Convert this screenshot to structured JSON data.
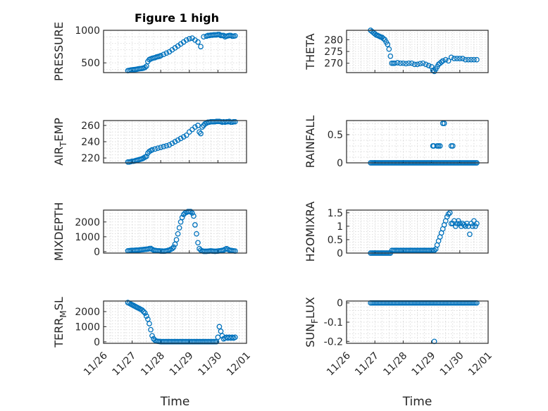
{
  "figure_title": "Figure 1 high",
  "series_color": "#0072BD",
  "chart_data": [
    {
      "type": "scatter",
      "name": "pressure-plot",
      "title": "Figure 1 high",
      "ylabel": "PRESSURE",
      "ylim": [
        350,
        1000
      ],
      "yticks": [
        500,
        1000
      ],
      "ytick_labels": [
        "500",
        "1000"
      ],
      "x": [
        26.85,
        26.9,
        26.95,
        27.0,
        27.05,
        27.1,
        27.15,
        27.2,
        27.25,
        27.3,
        27.35,
        27.4,
        27.45,
        27.5,
        27.55,
        27.6,
        27.65,
        27.7,
        27.75,
        27.8,
        27.85,
        27.9,
        27.95,
        28.0,
        28.1,
        28.2,
        28.3,
        28.4,
        28.5,
        28.6,
        28.7,
        28.8,
        28.9,
        29.0,
        29.1,
        29.2,
        29.3,
        29.4,
        29.5,
        29.6,
        29.65,
        29.7,
        29.75,
        29.8,
        29.85,
        29.9,
        29.95,
        30.0,
        30.05,
        30.1,
        30.15,
        30.2,
        30.25,
        30.3,
        30.35,
        30.4,
        30.45,
        30.5,
        30.55,
        30.6
      ],
      "y": [
        380,
        385,
        390,
        392,
        395,
        398,
        400,
        405,
        410,
        412,
        415,
        420,
        430,
        450,
        520,
        550,
        560,
        570,
        575,
        580,
        590,
        595,
        600,
        610,
        630,
        650,
        670,
        700,
        730,
        760,
        790,
        820,
        850,
        870,
        880,
        850,
        820,
        750,
        900,
        910,
        920,
        920,
        925,
        925,
        930,
        930,
        930,
        935,
        935,
        920,
        920,
        920,
        900,
        910,
        915,
        920,
        920,
        910,
        910,
        915
      ]
    },
    {
      "type": "scatter",
      "name": "theta-plot",
      "ylabel": "THETA",
      "ylim": [
        266,
        284
      ],
      "yticks": [
        270,
        275,
        280
      ],
      "ytick_labels": [
        "270",
        "275",
        "280"
      ],
      "x": [
        26.85,
        26.9,
        26.95,
        27.0,
        27.05,
        27.1,
        27.15,
        27.2,
        27.25,
        27.3,
        27.35,
        27.4,
        27.45,
        27.5,
        27.55,
        27.6,
        27.65,
        27.7,
        27.8,
        27.9,
        28.0,
        28.1,
        28.2,
        28.3,
        28.4,
        28.5,
        28.6,
        28.7,
        28.8,
        28.9,
        29.0,
        29.05,
        29.1,
        29.15,
        29.2,
        29.25,
        29.3,
        29.35,
        29.4,
        29.5,
        29.6,
        29.7,
        29.8,
        29.9,
        30.0,
        30.1,
        30.2,
        30.3,
        30.4,
        30.5,
        30.6
      ],
      "y": [
        284,
        283.5,
        283,
        282.5,
        282,
        281.8,
        281.5,
        281.2,
        281,
        280.5,
        280,
        279,
        278,
        276,
        273,
        270,
        270,
        270,
        270.2,
        270,
        270,
        269.8,
        270,
        270,
        269.5,
        269.5,
        269.8,
        270,
        269.5,
        269,
        268.5,
        267,
        266.5,
        267.5,
        268.5,
        269.5,
        270,
        270.5,
        271,
        271.5,
        271,
        272.5,
        272,
        272,
        272,
        272,
        271.5,
        271.5,
        271.5,
        271.5,
        271.5
      ]
    },
    {
      "type": "scatter",
      "name": "air-temp-plot",
      "ylabel": "AIR_TEMP",
      "ylim": [
        214,
        266
      ],
      "yticks": [
        220,
        240,
        260
      ],
      "ytick_labels": [
        "220",
        "240",
        "260"
      ],
      "x": [
        26.85,
        26.9,
        26.95,
        27.0,
        27.05,
        27.1,
        27.15,
        27.2,
        27.25,
        27.3,
        27.35,
        27.4,
        27.45,
        27.5,
        27.55,
        27.6,
        27.65,
        27.7,
        27.8,
        27.9,
        28.0,
        28.1,
        28.2,
        28.3,
        28.4,
        28.5,
        28.6,
        28.7,
        28.8,
        28.9,
        29.0,
        29.1,
        29.2,
        29.3,
        29.35,
        29.4,
        29.45,
        29.5,
        29.55,
        29.6,
        29.65,
        29.7,
        29.75,
        29.8,
        29.85,
        29.9,
        29.95,
        30.0,
        30.05,
        30.1,
        30.15,
        30.2,
        30.25,
        30.3,
        30.35,
        30.4,
        30.45,
        30.5,
        30.55,
        30.6
      ],
      "y": [
        215,
        215,
        215.5,
        216,
        216,
        216.5,
        217,
        217.5,
        218,
        218.5,
        219,
        220,
        221,
        222,
        226,
        228,
        229,
        230,
        231,
        232,
        233,
        234,
        235,
        236,
        238,
        240,
        242,
        244,
        246,
        248,
        252,
        255,
        258,
        260,
        252,
        250,
        258,
        260,
        262,
        263,
        264,
        264,
        264.5,
        264.5,
        264.5,
        264.5,
        265,
        265,
        265,
        264.5,
        264,
        264.5,
        264,
        264.5,
        264.5,
        265,
        264,
        264,
        264.5,
        264.5
      ]
    },
    {
      "type": "scatter",
      "name": "rainfall-plot",
      "ylabel": "RAINFALL",
      "ylim": [
        0,
        0.75
      ],
      "yticks": [
        0,
        0.5
      ],
      "ytick_labels": [
        "0",
        "0.5"
      ],
      "x": [
        26.85,
        26.9,
        26.95,
        27.0,
        27.05,
        27.1,
        27.15,
        27.2,
        27.25,
        27.3,
        27.35,
        27.4,
        27.45,
        27.5,
        27.55,
        27.6,
        27.65,
        27.7,
        27.75,
        27.8,
        27.85,
        27.9,
        27.95,
        28.0,
        28.05,
        28.1,
        28.15,
        28.2,
        28.25,
        28.3,
        28.35,
        28.4,
        28.45,
        28.5,
        28.55,
        28.6,
        28.65,
        28.7,
        28.75,
        28.8,
        28.85,
        28.9,
        28.95,
        29.0,
        29.05,
        29.1,
        29.15,
        29.2,
        29.25,
        29.3,
        29.35,
        29.4,
        29.45,
        29.5,
        29.55,
        29.6,
        29.65,
        29.7,
        29.75,
        29.8,
        29.85,
        29.9,
        29.95,
        30.0,
        30.05,
        30.1,
        30.15,
        30.2,
        30.25,
        30.3,
        30.35,
        30.4,
        30.45,
        30.5,
        30.55,
        30.6,
        29.05,
        29.08,
        29.2,
        29.25,
        29.3,
        29.4,
        29.45,
        29.7,
        29.75
      ],
      "y": [
        0,
        0,
        0,
        0,
        0,
        0,
        0,
        0,
        0,
        0,
        0,
        0,
        0,
        0,
        0,
        0,
        0,
        0,
        0,
        0,
        0,
        0,
        0,
        0,
        0,
        0,
        0,
        0,
        0,
        0,
        0,
        0,
        0,
        0,
        0,
        0,
        0,
        0,
        0,
        0,
        0,
        0,
        0,
        0,
        0,
        0,
        0,
        0,
        0,
        0,
        0,
        0,
        0,
        0,
        0,
        0,
        0,
        0,
        0,
        0,
        0,
        0,
        0,
        0,
        0,
        0,
        0,
        0,
        0,
        0,
        0,
        0,
        0,
        0,
        0,
        0,
        0.3,
        0.3,
        0.3,
        0.3,
        0.3,
        0.7,
        0.7,
        0.3,
        0.3
      ]
    },
    {
      "type": "scatter",
      "name": "mixdepth-plot",
      "ylabel": "MIXDEPTH",
      "ylim": [
        -100,
        2800
      ],
      "yticks": [
        0,
        1000,
        2000
      ],
      "ytick_labels": [
        "0",
        "1000",
        "2000"
      ],
      "x": [
        26.85,
        26.9,
        26.95,
        27.0,
        27.05,
        27.1,
        27.15,
        27.2,
        27.25,
        27.3,
        27.35,
        27.4,
        27.45,
        27.5,
        27.55,
        27.6,
        27.65,
        27.7,
        27.75,
        27.8,
        27.85,
        27.9,
        27.95,
        28.0,
        28.05,
        28.1,
        28.15,
        28.2,
        28.25,
        28.3,
        28.35,
        28.4,
        28.45,
        28.5,
        28.55,
        28.6,
        28.65,
        28.7,
        28.75,
        28.8,
        28.85,
        28.9,
        28.95,
        29.0,
        29.05,
        29.1,
        29.15,
        29.2,
        29.25,
        29.3,
        29.35,
        29.4,
        29.45,
        29.5,
        29.55,
        29.6,
        29.65,
        29.7,
        29.75,
        29.8,
        29.85,
        29.9,
        29.95,
        30.0,
        30.05,
        30.1,
        30.15,
        30.2,
        30.25,
        30.3,
        30.35,
        30.4,
        30.45,
        30.5,
        30.55,
        30.6
      ],
      "y": [
        50,
        60,
        70,
        80,
        80,
        90,
        100,
        100,
        110,
        120,
        130,
        140,
        150,
        160,
        170,
        200,
        210,
        150,
        100,
        80,
        60,
        50,
        50,
        40,
        40,
        30,
        40,
        50,
        80,
        100,
        150,
        200,
        300,
        500,
        800,
        1200,
        1600,
        2000,
        2300,
        2500,
        2600,
        2650,
        2700,
        2700,
        2700,
        2600,
        2400,
        1800,
        1200,
        600,
        200,
        100,
        50,
        20,
        20,
        20,
        30,
        40,
        50,
        40,
        30,
        20,
        30,
        40,
        50,
        60,
        80,
        100,
        150,
        200,
        150,
        100,
        80,
        60,
        50,
        40
      ]
    },
    {
      "type": "scatter",
      "name": "h2omixra-plot",
      "ylabel": "H2OMIXRA",
      "ylim": [
        0,
        1.6
      ],
      "yticks": [
        0,
        0.5,
        1,
        1.5
      ],
      "ytick_labels": [
        "0",
        "0.5",
        "1",
        "1.5"
      ],
      "x": [
        26.85,
        26.9,
        26.95,
        27.0,
        27.05,
        27.1,
        27.15,
        27.2,
        27.25,
        27.3,
        27.35,
        27.4,
        27.45,
        27.5,
        27.55,
        27.6,
        27.65,
        27.7,
        27.75,
        27.8,
        27.85,
        27.9,
        27.95,
        28.0,
        28.05,
        28.1,
        28.15,
        28.2,
        28.25,
        28.3,
        28.35,
        28.4,
        28.45,
        28.5,
        28.55,
        28.6,
        28.65,
        28.7,
        28.75,
        28.8,
        28.85,
        28.9,
        28.95,
        29.0,
        29.05,
        29.1,
        29.15,
        29.2,
        29.25,
        29.3,
        29.35,
        29.4,
        29.45,
        29.5,
        29.55,
        29.6,
        29.65,
        29.7,
        29.75,
        29.8,
        29.85,
        29.9,
        29.95,
        30.0,
        30.05,
        30.1,
        30.15,
        30.2,
        30.25,
        30.3,
        30.35,
        30.4,
        30.45,
        30.5,
        30.55,
        30.6
      ],
      "y": [
        0,
        0,
        0,
        0,
        0,
        0,
        0,
        0,
        0,
        0,
        0,
        0,
        0,
        0,
        0,
        0.1,
        0.1,
        0.1,
        0.1,
        0.1,
        0.1,
        0.1,
        0.1,
        0.1,
        0.1,
        0.1,
        0.1,
        0.1,
        0.1,
        0.1,
        0.1,
        0.1,
        0.1,
        0.1,
        0.1,
        0.1,
        0.1,
        0.1,
        0.1,
        0.1,
        0.1,
        0.1,
        0.1,
        0.1,
        0.1,
        0.1,
        0.15,
        0.3,
        0.45,
        0.6,
        0.75,
        0.9,
        1.05,
        1.2,
        1.35,
        1.45,
        1.5,
        1.1,
        1.1,
        1.2,
        1.0,
        1.1,
        1.2,
        1.1,
        1.0,
        1.1,
        1.05,
        1.0,
        1.1,
        1.0,
        0.7,
        1.1,
        1.0,
        1.2,
        1.0,
        1.1
      ]
    },
    {
      "type": "scatter",
      "name": "terr-msl-plot",
      "ylabel": "TERR_MSL",
      "ylim": [
        -100,
        2700
      ],
      "yticks": [
        0,
        1000,
        2000
      ],
      "ytick_labels": [
        "0",
        "1000",
        "2000"
      ],
      "xticks": [
        26,
        27,
        28,
        29,
        30,
        31
      ],
      "xtick_labels": [
        "11/26",
        "11/27",
        "11/28",
        "11/29",
        "11/30",
        "12/01"
      ],
      "xlim": [
        26,
        31
      ],
      "xlabel": "Time",
      "x": [
        26.85,
        26.9,
        26.95,
        27.0,
        27.05,
        27.1,
        27.15,
        27.2,
        27.25,
        27.3,
        27.35,
        27.4,
        27.45,
        27.5,
        27.55,
        27.6,
        27.65,
        27.7,
        27.75,
        27.8,
        27.85,
        27.9,
        27.95,
        28.0,
        28.05,
        28.1,
        28.15,
        28.2,
        28.25,
        28.3,
        28.35,
        28.4,
        28.45,
        28.5,
        28.55,
        28.6,
        28.65,
        28.7,
        28.75,
        28.8,
        28.85,
        28.9,
        28.95,
        29.0,
        29.05,
        29.1,
        29.15,
        29.2,
        29.25,
        29.3,
        29.35,
        29.4,
        29.45,
        29.5,
        29.55,
        29.6,
        29.65,
        29.7,
        29.75,
        29.8,
        29.85,
        29.9,
        29.95,
        30.0,
        30.05,
        30.1,
        30.15,
        30.2,
        30.25,
        30.3,
        30.35,
        30.4,
        30.45,
        30.5,
        30.55,
        30.6
      ],
      "y": [
        2600,
        2550,
        2500,
        2450,
        2400,
        2350,
        2300,
        2250,
        2200,
        2150,
        2100,
        2000,
        1900,
        1700,
        1500,
        1200,
        800,
        400,
        200,
        100,
        50,
        30,
        20,
        10,
        10,
        10,
        10,
        10,
        10,
        10,
        10,
        10,
        10,
        10,
        10,
        10,
        10,
        10,
        10,
        10,
        10,
        10,
        10,
        10,
        10,
        10,
        10,
        10,
        10,
        10,
        10,
        10,
        10,
        10,
        10,
        10,
        10,
        10,
        10,
        10,
        10,
        10,
        10,
        300,
        1000,
        700,
        400,
        200,
        250,
        300,
        250,
        300,
        250,
        300,
        250,
        300
      ]
    },
    {
      "type": "scatter",
      "name": "sun-flux-plot",
      "ylabel": "SUN_FLUX",
      "ylim": [
        -0.21,
        0.01
      ],
      "yticks": [
        -0.2,
        -0.1,
        0
      ],
      "ytick_labels": [
        "-0.2",
        "-0.1",
        "0"
      ],
      "xticks": [
        26,
        27,
        28,
        29,
        30,
        31
      ],
      "xtick_labels": [
        "11/26",
        "11/27",
        "11/28",
        "11/29",
        "11/30",
        "12/01"
      ],
      "xlim": [
        26,
        31
      ],
      "xlabel": "Time",
      "x": [
        26.85,
        26.9,
        26.95,
        27.0,
        27.05,
        27.1,
        27.15,
        27.2,
        27.25,
        27.3,
        27.35,
        27.4,
        27.45,
        27.5,
        27.55,
        27.6,
        27.65,
        27.7,
        27.75,
        27.8,
        27.85,
        27.9,
        27.95,
        28.0,
        28.05,
        28.1,
        28.15,
        28.2,
        28.25,
        28.3,
        28.35,
        28.4,
        28.45,
        28.5,
        28.55,
        28.6,
        28.65,
        28.7,
        28.75,
        28.8,
        28.85,
        28.9,
        28.95,
        29.0,
        29.05,
        29.1,
        29.15,
        29.2,
        29.25,
        29.3,
        29.35,
        29.4,
        29.45,
        29.5,
        29.55,
        29.6,
        29.65,
        29.7,
        29.75,
        29.8,
        29.85,
        29.9,
        29.95,
        30.0,
        30.05,
        30.1,
        30.15,
        30.2,
        30.25,
        30.3,
        30.35,
        30.4,
        30.45,
        30.5,
        30.55,
        30.6,
        29.1
      ],
      "y": [
        0,
        0,
        0,
        0,
        0,
        0,
        0,
        0,
        0,
        0,
        0,
        0,
        0,
        0,
        0,
        0,
        0,
        0,
        0,
        0,
        0,
        0,
        0,
        0,
        0,
        0,
        0,
        0,
        0,
        0,
        0,
        0,
        0,
        0,
        0,
        0,
        0,
        0,
        0,
        0,
        0,
        0,
        0,
        0,
        0,
        0,
        0,
        0,
        0,
        0,
        0,
        0,
        0,
        0,
        0,
        0,
        0,
        0,
        0,
        0,
        0,
        0,
        0,
        0,
        0,
        0,
        0,
        0,
        0,
        0,
        0,
        0,
        0,
        0,
        0,
        0,
        -0.2
      ]
    }
  ]
}
